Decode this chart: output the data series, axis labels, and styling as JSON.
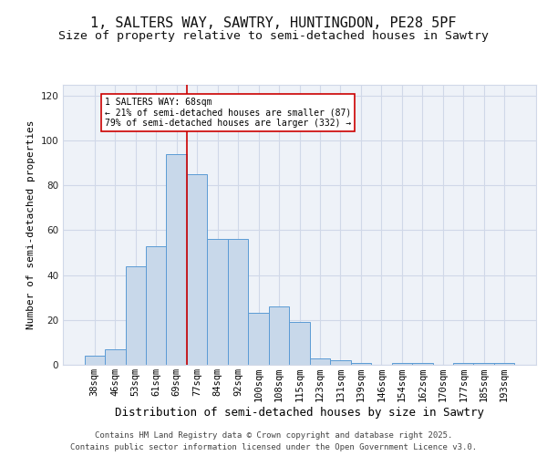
{
  "title1": "1, SALTERS WAY, SAWTRY, HUNTINGDON, PE28 5PF",
  "title2": "Size of property relative to semi-detached houses in Sawtry",
  "xlabel": "Distribution of semi-detached houses by size in Sawtry",
  "ylabel": "Number of semi-detached properties",
  "categories": [
    "38sqm",
    "46sqm",
    "53sqm",
    "61sqm",
    "69sqm",
    "77sqm",
    "84sqm",
    "92sqm",
    "100sqm",
    "108sqm",
    "115sqm",
    "123sqm",
    "131sqm",
    "139sqm",
    "146sqm",
    "154sqm",
    "162sqm",
    "170sqm",
    "177sqm",
    "185sqm",
    "193sqm"
  ],
  "values": [
    4,
    7,
    44,
    53,
    94,
    85,
    56,
    56,
    23,
    26,
    19,
    3,
    2,
    1,
    0,
    1,
    1,
    0,
    1,
    1,
    1
  ],
  "bar_color": "#c8d8ea",
  "bar_edge_color": "#5b9bd5",
  "grid_color": "#d0d8e8",
  "bg_color": "#eef2f8",
  "annotation_text": "1 SALTERS WAY: 68sqm\n← 21% of semi-detached houses are smaller (87)\n79% of semi-detached houses are larger (332) →",
  "vline_x_index": 4,
  "vline_color": "#cc0000",
  "annotation_box_color": "#ffffff",
  "annotation_box_edge": "#cc0000",
  "footer": "Contains HM Land Registry data © Crown copyright and database right 2025.\nContains public sector information licensed under the Open Government Licence v3.0.",
  "ylim": [
    0,
    125
  ],
  "yticks": [
    0,
    20,
    40,
    60,
    80,
    100,
    120
  ],
  "title1_fontsize": 11,
  "title2_fontsize": 9.5,
  "xlabel_fontsize": 9,
  "ylabel_fontsize": 8,
  "tick_fontsize": 7.5,
  "footer_fontsize": 6.5
}
